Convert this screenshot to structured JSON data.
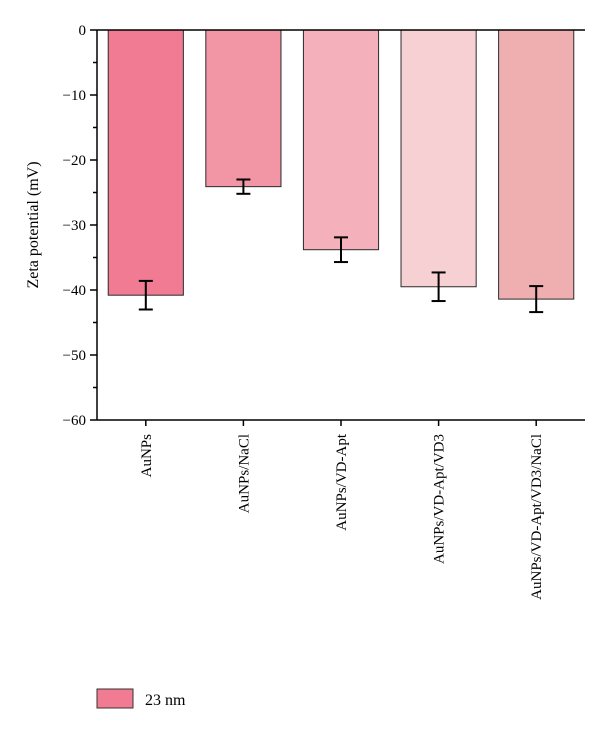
{
  "chart_data": {
    "type": "bar",
    "categories": [
      "AuNPs",
      "AuNPs/NaCl",
      "AuNPs/VD-Apt",
      "AuNPs/VD-Apt/VD3",
      "AuNPs/VD-Apt/VD3/NaCl"
    ],
    "series": [
      {
        "name": "23 nm",
        "values": [
          -40.8,
          -24.1,
          -33.8,
          -39.5,
          -41.4
        ],
        "errors": [
          2.2,
          1.1,
          1.9,
          2.2,
          2.0
        ]
      }
    ],
    "bar_colors": [
      "#f07b93",
      "#f295a5",
      "#f4b1bc",
      "#f7d0d3",
      "#efaeb0"
    ],
    "legend_color": "#f07b93",
    "ylabel": "Zeta potential (mV)",
    "xlabel": "",
    "ylim": [
      -60,
      0
    ],
    "yticks": [
      0,
      -10,
      -20,
      -30,
      -40,
      -50,
      -60
    ],
    "ytick_labels": [
      "0",
      "−10",
      "−20",
      "−30",
      "−40",
      "−50",
      "−60"
    ],
    "grid": false,
    "legend_position": "bottom-left"
  }
}
